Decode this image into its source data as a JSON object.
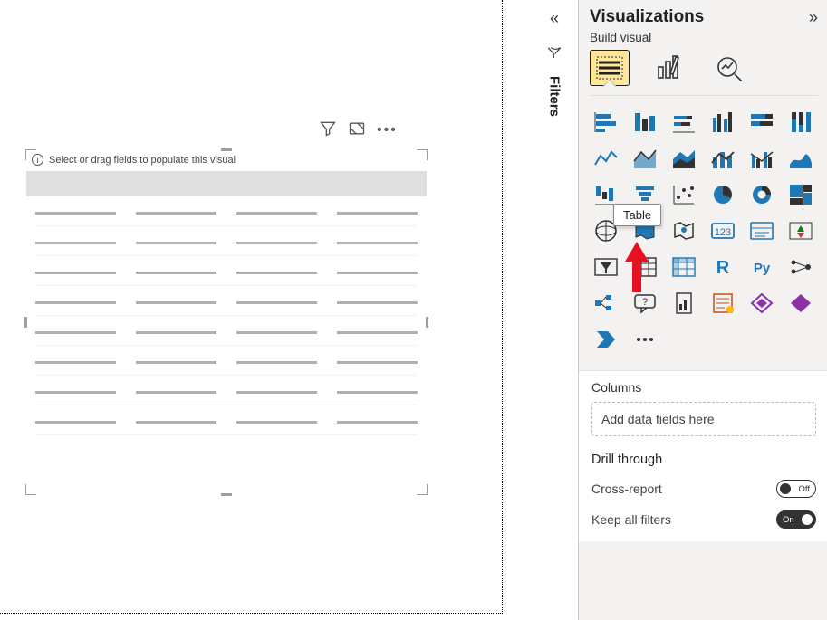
{
  "canvas": {
    "placeholder_text": "Select or drag fields to populate this visual",
    "placeholder_rows": 8,
    "placeholder_cols": 4
  },
  "filters": {
    "label": "Filters"
  },
  "viz": {
    "title": "Visualizations",
    "build_label": "Build visual",
    "tooltip": "Table",
    "columns_label": "Columns",
    "dropzone_text": "Add data fields here",
    "drill_label": "Drill through",
    "cross_report_label": "Cross-report",
    "cross_report_state": "Off",
    "keep_filters_label": "Keep all filters",
    "keep_filters_state": "On",
    "colors": {
      "accent_blue": "#1f77b4",
      "accent_dark": "#323130",
      "accent_green": "#107c10",
      "accent_purple": "#8c30a8",
      "accent_orange": "#ca5010",
      "highlight": "#ffe699"
    },
    "icons": [
      {
        "name": "stacked-bar-icon"
      },
      {
        "name": "clustered-bar-icon"
      },
      {
        "name": "stacked-column-icon"
      },
      {
        "name": "clustered-column-icon"
      },
      {
        "name": "stacked-bar-100-icon"
      },
      {
        "name": "stacked-column-100-icon"
      },
      {
        "name": "line-icon"
      },
      {
        "name": "area-icon"
      },
      {
        "name": "stacked-area-icon"
      },
      {
        "name": "line-column-icon"
      },
      {
        "name": "line-clustered-icon"
      },
      {
        "name": "ribbon-icon"
      },
      {
        "name": "waterfall-icon"
      },
      {
        "name": "funnel-icon"
      },
      {
        "name": "scatter-icon"
      },
      {
        "name": "pie-icon"
      },
      {
        "name": "donut-icon"
      },
      {
        "name": "treemap-icon"
      },
      {
        "name": "map-icon"
      },
      {
        "name": "filled-map-icon"
      },
      {
        "name": "azure-map-icon"
      },
      {
        "name": "card-icon"
      },
      {
        "name": "multi-card-icon"
      },
      {
        "name": "kpi-icon"
      },
      {
        "name": "slicer-icon"
      },
      {
        "name": "table-icon"
      },
      {
        "name": "matrix-icon"
      },
      {
        "name": "r-visual-icon"
      },
      {
        "name": "python-visual-icon"
      },
      {
        "name": "key-influencers-icon"
      },
      {
        "name": "decomposition-icon"
      },
      {
        "name": "qna-icon"
      },
      {
        "name": "paginated-icon"
      },
      {
        "name": "narrative-icon"
      },
      {
        "name": "arcgis-icon"
      },
      {
        "name": "power-apps-icon"
      },
      {
        "name": "power-automate-icon"
      },
      {
        "name": "more-visuals-icon"
      }
    ]
  }
}
